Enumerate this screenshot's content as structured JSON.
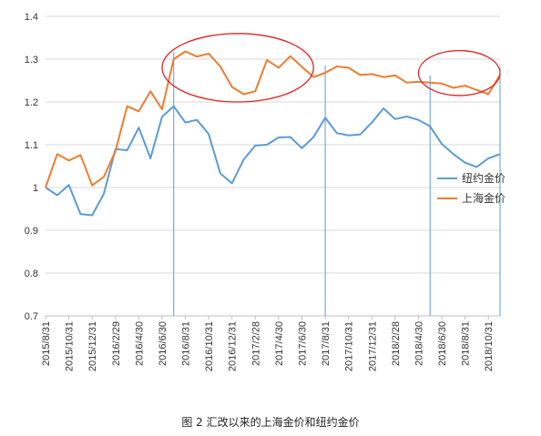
{
  "chart_data": {
    "type": "line",
    "caption": "图 2  汇改以来的上海金价和纽约金价",
    "ylim": [
      0.7,
      1.4
    ],
    "yticks": [
      "0.7",
      "0.8",
      "0.9",
      "1",
      "1.1",
      "1.2",
      "1.3",
      "1.4"
    ],
    "grid": "horizontal",
    "legend_position": "right",
    "x": [
      "2015/8/31",
      "2015/9/30",
      "2015/10/31",
      "2015/11/30",
      "2015/12/31",
      "2016/1/31",
      "2016/2/29",
      "2016/3/31",
      "2016/4/30",
      "2016/5/31",
      "2016/6/30",
      "2016/7/31",
      "2016/8/31",
      "2016/9/30",
      "2016/10/31",
      "2016/11/30",
      "2016/12/31",
      "2017/1/31",
      "2017/2/28",
      "2017/3/31",
      "2017/4/30",
      "2017/5/31",
      "2017/6/30",
      "2017/7/31",
      "2017/8/31",
      "2017/9/30",
      "2017/10/31",
      "2017/11/30",
      "2017/12/31",
      "2018/1/31",
      "2018/2/28",
      "2018/3/31",
      "2018/4/30",
      "2018/5/31",
      "2018/6/30",
      "2018/7/31",
      "2018/8/31",
      "2018/9/30",
      "2018/10/31",
      "2018/11/30"
    ],
    "xtick_labels": [
      "2015/8/31",
      "2015/10/31",
      "2015/12/31",
      "2016/2/29",
      "2016/4/30",
      "2016/6/30",
      "2016/8/31",
      "2016/10/31",
      "2016/12/31",
      "2017/2/28",
      "2017/4/30",
      "2017/6/30",
      "2017/8/31",
      "2017/10/31",
      "2017/12/31",
      "2018/2/28",
      "2018/4/30",
      "2018/6/30",
      "2018/8/31",
      "2018/10/31"
    ],
    "series": [
      {
        "name": "纽约金价",
        "color": "#5b9bd5",
        "values": [
          1.0,
          0.982,
          1.006,
          0.938,
          0.935,
          0.985,
          1.09,
          1.087,
          1.14,
          1.068,
          1.165,
          1.19,
          1.152,
          1.158,
          1.125,
          1.033,
          1.01,
          1.065,
          1.098,
          1.1,
          1.117,
          1.118,
          1.092,
          1.118,
          1.163,
          1.127,
          1.122,
          1.124,
          1.152,
          1.185,
          1.16,
          1.166,
          1.158,
          1.143,
          1.102,
          1.078,
          1.058,
          1.048,
          1.068,
          1.078
        ]
      },
      {
        "name": "上海金价",
        "color": "#ed7d31",
        "values": [
          1.0,
          1.078,
          1.063,
          1.076,
          1.005,
          1.025,
          1.085,
          1.19,
          1.178,
          1.225,
          1.183,
          1.3,
          1.318,
          1.306,
          1.313,
          1.283,
          1.235,
          1.218,
          1.225,
          1.298,
          1.28,
          1.307,
          1.282,
          1.258,
          1.268,
          1.283,
          1.28,
          1.263,
          1.265,
          1.258,
          1.262,
          1.245,
          1.247,
          1.245,
          1.243,
          1.233,
          1.238,
          1.228,
          1.218,
          1.263
        ]
      }
    ],
    "annotations": {
      "vertical_lines_at": [
        "2016/7/31",
        "2017/8/31",
        "2018/5/31",
        "2018/11/30"
      ],
      "vertical_line_color": "#5b9bd5",
      "ellipse_color": "#e02020",
      "ellipses": [
        {
          "x_from": "2016/6/30",
          "x_to": "2017/7/31",
          "y_from": 1.2,
          "y_to": 1.36
        },
        {
          "x_from": "2018/4/30",
          "x_to": "2018/11/30",
          "y_from": 1.215,
          "y_to": 1.32
        }
      ]
    }
  }
}
